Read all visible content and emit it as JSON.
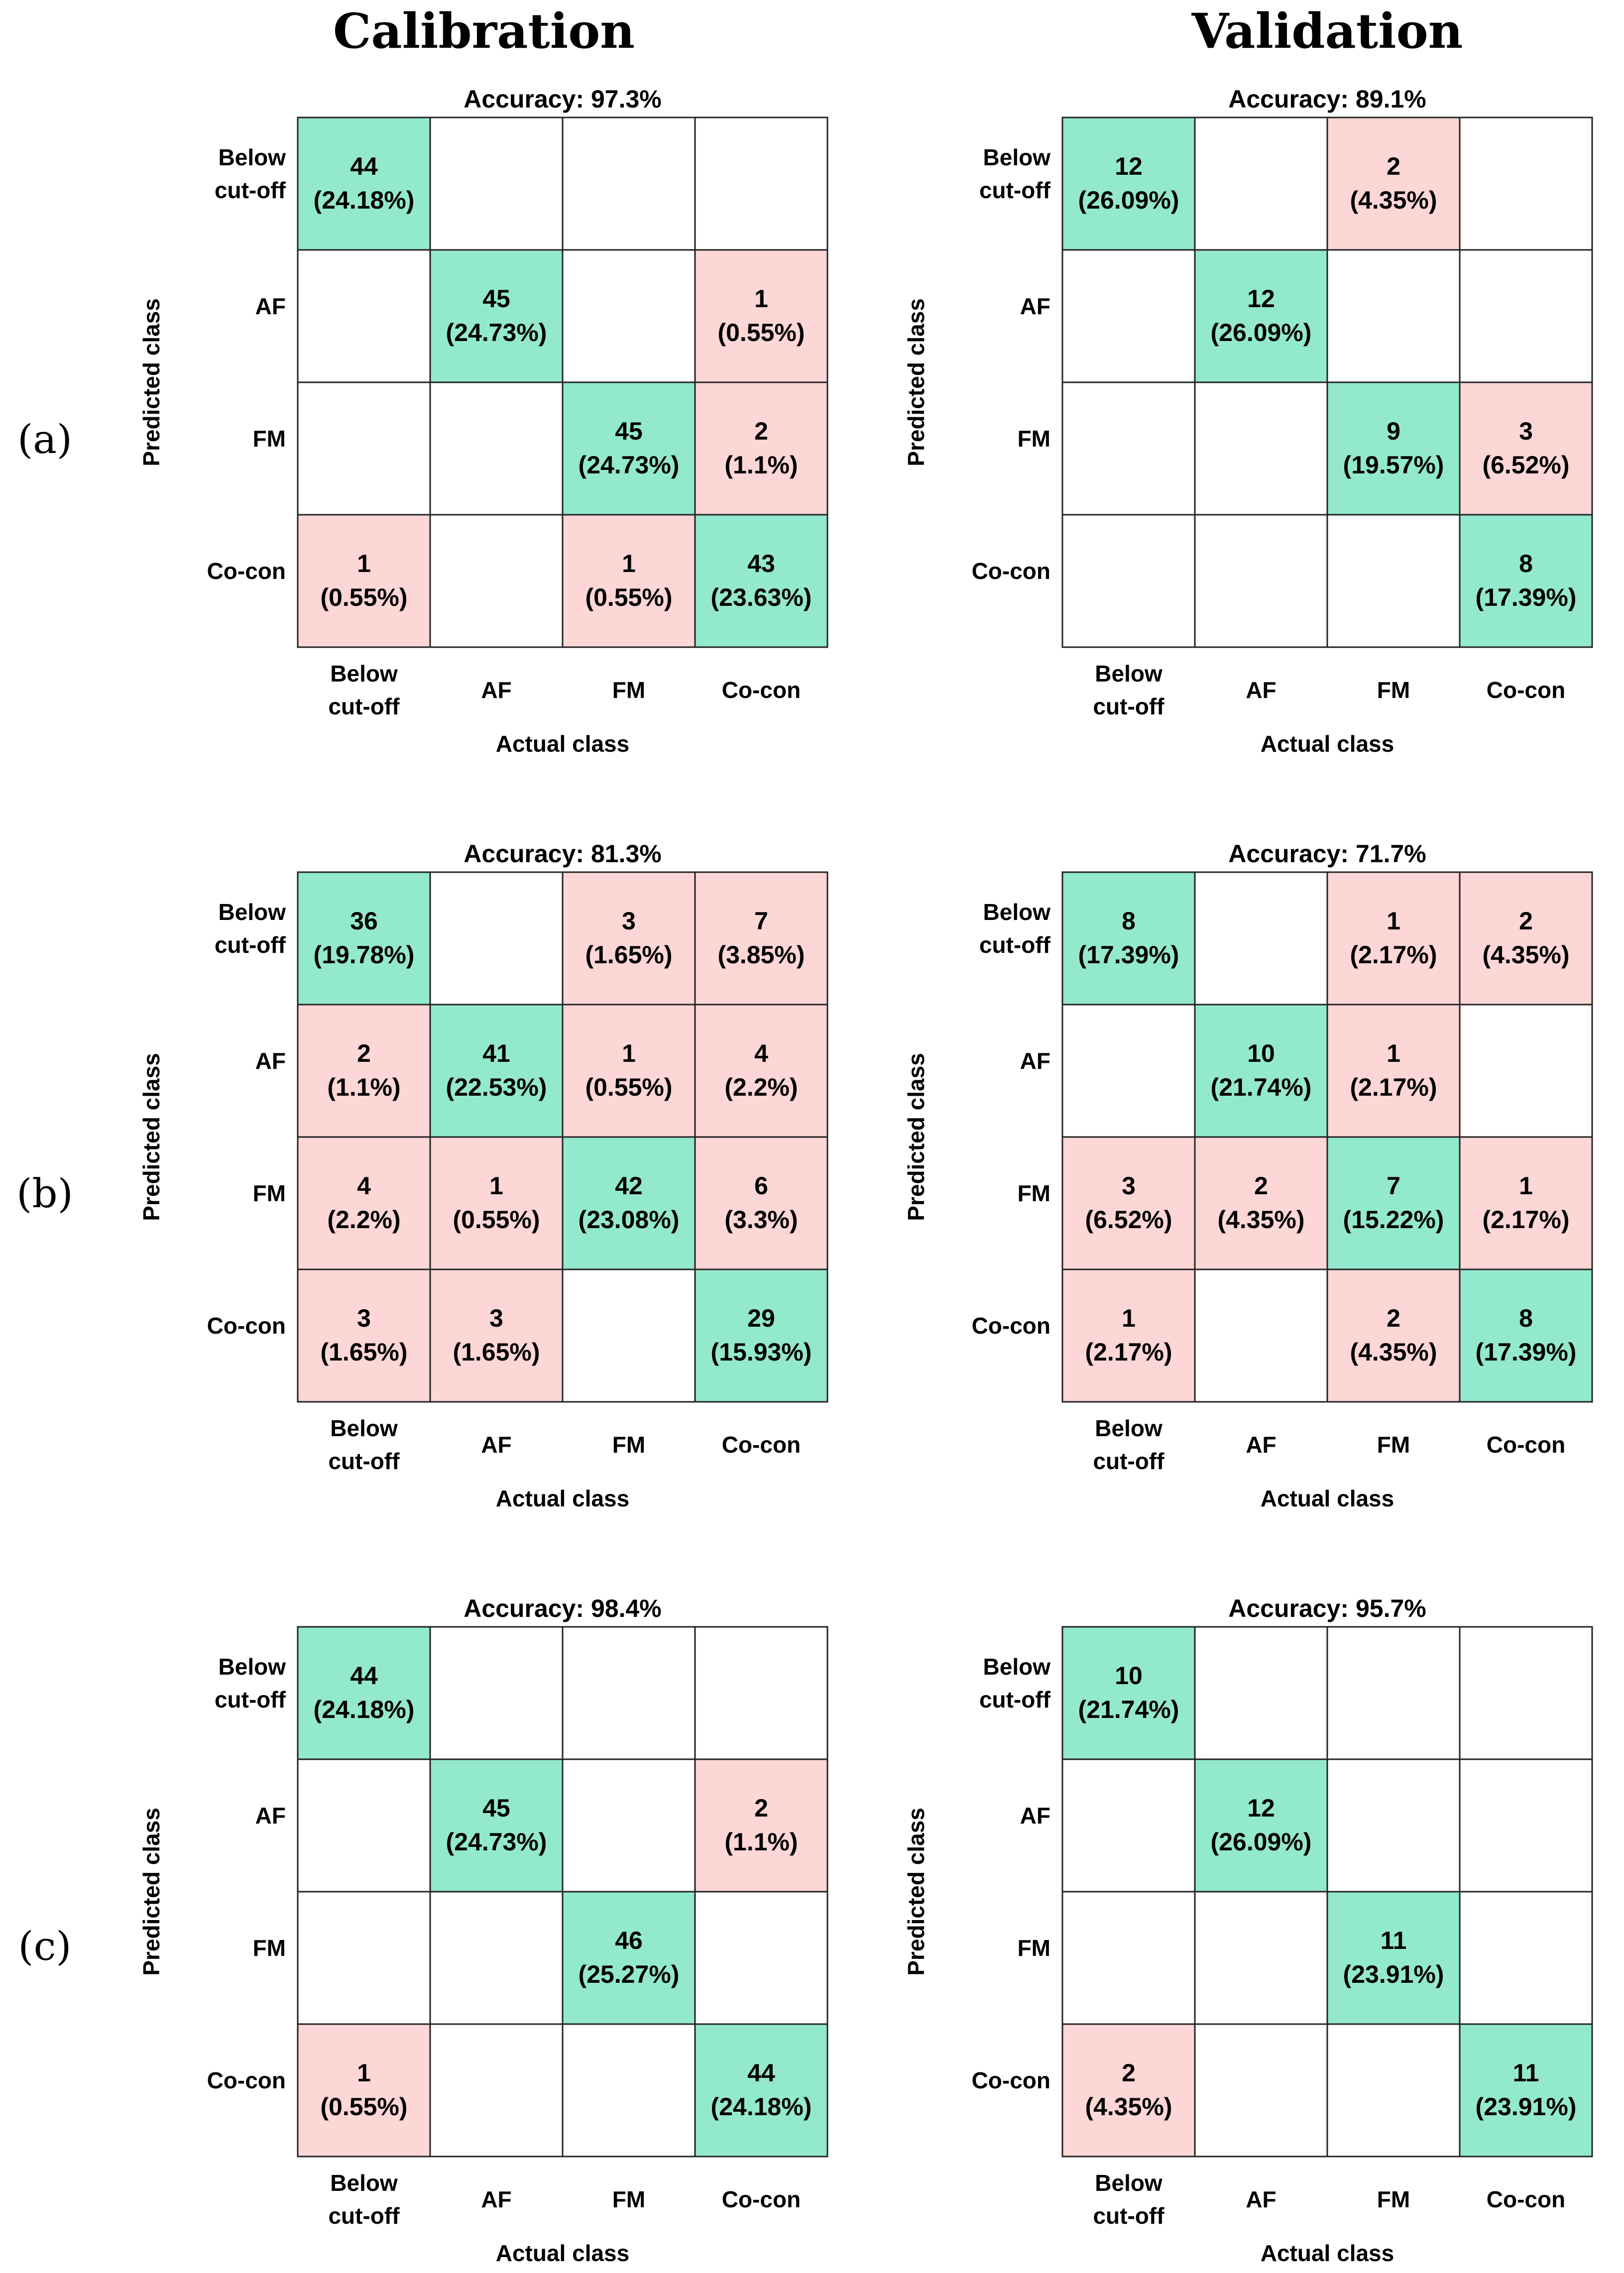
{
  "columns": [
    "Calibration",
    "Validation"
  ],
  "rows": [
    {
      "label": "(a)"
    },
    {
      "label": "(b)"
    },
    {
      "label": "(c)"
    }
  ],
  "colors": {
    "correct": "#93e9cd",
    "incorrect": "#fdd6d6",
    "empty": "#ffffff",
    "grid": "#222222"
  },
  "chart_data": [
    {
      "type": "heatmap",
      "panel": "a-calibration",
      "title": "Accuracy: 97.3%",
      "xlabel": "Actual class",
      "ylabel": "Predicted class",
      "x_categories": [
        "Below cut-off",
        "AF",
        "FM",
        "Co-con"
      ],
      "y_categories": [
        "Below cut-off",
        "AF",
        "FM",
        "Co-con"
      ],
      "counts": [
        [
          44,
          null,
          null,
          null
        ],
        [
          null,
          45,
          null,
          1
        ],
        [
          null,
          null,
          45,
          2
        ],
        [
          1,
          null,
          1,
          43
        ]
      ],
      "percents": [
        [
          "24.18%",
          null,
          null,
          null
        ],
        [
          null,
          "24.73%",
          null,
          "0.55%"
        ],
        [
          null,
          null,
          "24.73%",
          "1.1%"
        ],
        [
          "0.55%",
          null,
          "0.55%",
          "23.63%"
        ]
      ]
    },
    {
      "type": "heatmap",
      "panel": "a-validation",
      "title": "Accuracy: 89.1%",
      "xlabel": "Actual class",
      "ylabel": "Predicted class",
      "x_categories": [
        "Below cut-off",
        "AF",
        "FM",
        "Co-con"
      ],
      "y_categories": [
        "Below cut-off",
        "AF",
        "FM",
        "Co-con"
      ],
      "counts": [
        [
          12,
          null,
          2,
          null
        ],
        [
          null,
          12,
          null,
          null
        ],
        [
          null,
          null,
          9,
          3
        ],
        [
          null,
          null,
          null,
          8
        ]
      ],
      "percents": [
        [
          "26.09%",
          null,
          "4.35%",
          null
        ],
        [
          null,
          "26.09%",
          null,
          null
        ],
        [
          null,
          null,
          "19.57%",
          "6.52%"
        ],
        [
          null,
          null,
          null,
          "17.39%"
        ]
      ]
    },
    {
      "type": "heatmap",
      "panel": "b-calibration",
      "title": "Accuracy: 81.3%",
      "xlabel": "Actual class",
      "ylabel": "Predicted class",
      "x_categories": [
        "Below cut-off",
        "AF",
        "FM",
        "Co-con"
      ],
      "y_categories": [
        "Below cut-off",
        "AF",
        "FM",
        "Co-con"
      ],
      "counts": [
        [
          36,
          null,
          3,
          7
        ],
        [
          2,
          41,
          1,
          4
        ],
        [
          4,
          1,
          42,
          6
        ],
        [
          3,
          3,
          null,
          29
        ]
      ],
      "percents": [
        [
          "19.78%",
          null,
          "1.65%",
          "3.85%"
        ],
        [
          "1.1%",
          "22.53%",
          "0.55%",
          "2.2%"
        ],
        [
          "2.2%",
          "0.55%",
          "23.08%",
          "3.3%"
        ],
        [
          "1.65%",
          "1.65%",
          null,
          "15.93%"
        ]
      ]
    },
    {
      "type": "heatmap",
      "panel": "b-validation",
      "title": "Accuracy: 71.7%",
      "xlabel": "Actual class",
      "ylabel": "Predicted class",
      "x_categories": [
        "Below cut-off",
        "AF",
        "FM",
        "Co-con"
      ],
      "y_categories": [
        "Below cut-off",
        "AF",
        "FM",
        "Co-con"
      ],
      "counts": [
        [
          8,
          null,
          1,
          2
        ],
        [
          null,
          10,
          1,
          null
        ],
        [
          3,
          2,
          7,
          1
        ],
        [
          1,
          null,
          2,
          8
        ]
      ],
      "percents": [
        [
          "17.39%",
          null,
          "2.17%",
          "4.35%"
        ],
        [
          null,
          "21.74%",
          "2.17%",
          null
        ],
        [
          "6.52%",
          "4.35%",
          "15.22%",
          "2.17%"
        ],
        [
          "2.17%",
          null,
          "4.35%",
          "17.39%"
        ]
      ]
    },
    {
      "type": "heatmap",
      "panel": "c-calibration",
      "title": "Accuracy: 98.4%",
      "xlabel": "Actual class",
      "ylabel": "Predicted class",
      "x_categories": [
        "Below cut-off",
        "AF",
        "FM",
        "Co-con"
      ],
      "y_categories": [
        "Below cut-off",
        "AF",
        "FM",
        "Co-con"
      ],
      "counts": [
        [
          44,
          null,
          null,
          null
        ],
        [
          null,
          45,
          null,
          2
        ],
        [
          null,
          null,
          46,
          null
        ],
        [
          1,
          null,
          null,
          44
        ]
      ],
      "percents": [
        [
          "24.18%",
          null,
          null,
          null
        ],
        [
          null,
          "24.73%",
          null,
          "1.1%"
        ],
        [
          null,
          null,
          "25.27%",
          null
        ],
        [
          "0.55%",
          null,
          null,
          "24.18%"
        ]
      ]
    },
    {
      "type": "heatmap",
      "panel": "c-validation",
      "title": "Accuracy: 95.7%",
      "xlabel": "Actual class",
      "ylabel": "Predicted class",
      "x_categories": [
        "Below cut-off",
        "AF",
        "FM",
        "Co-con"
      ],
      "y_categories": [
        "Below cut-off",
        "AF",
        "FM",
        "Co-con"
      ],
      "counts": [
        [
          10,
          null,
          null,
          null
        ],
        [
          null,
          12,
          null,
          null
        ],
        [
          null,
          null,
          11,
          null
        ],
        [
          2,
          null,
          null,
          11
        ]
      ],
      "percents": [
        [
          "21.74%",
          null,
          null,
          null
        ],
        [
          null,
          "26.09%",
          null,
          null
        ],
        [
          null,
          null,
          "23.91%",
          null
        ],
        [
          "4.35%",
          null,
          null,
          "23.91%"
        ]
      ]
    }
  ]
}
